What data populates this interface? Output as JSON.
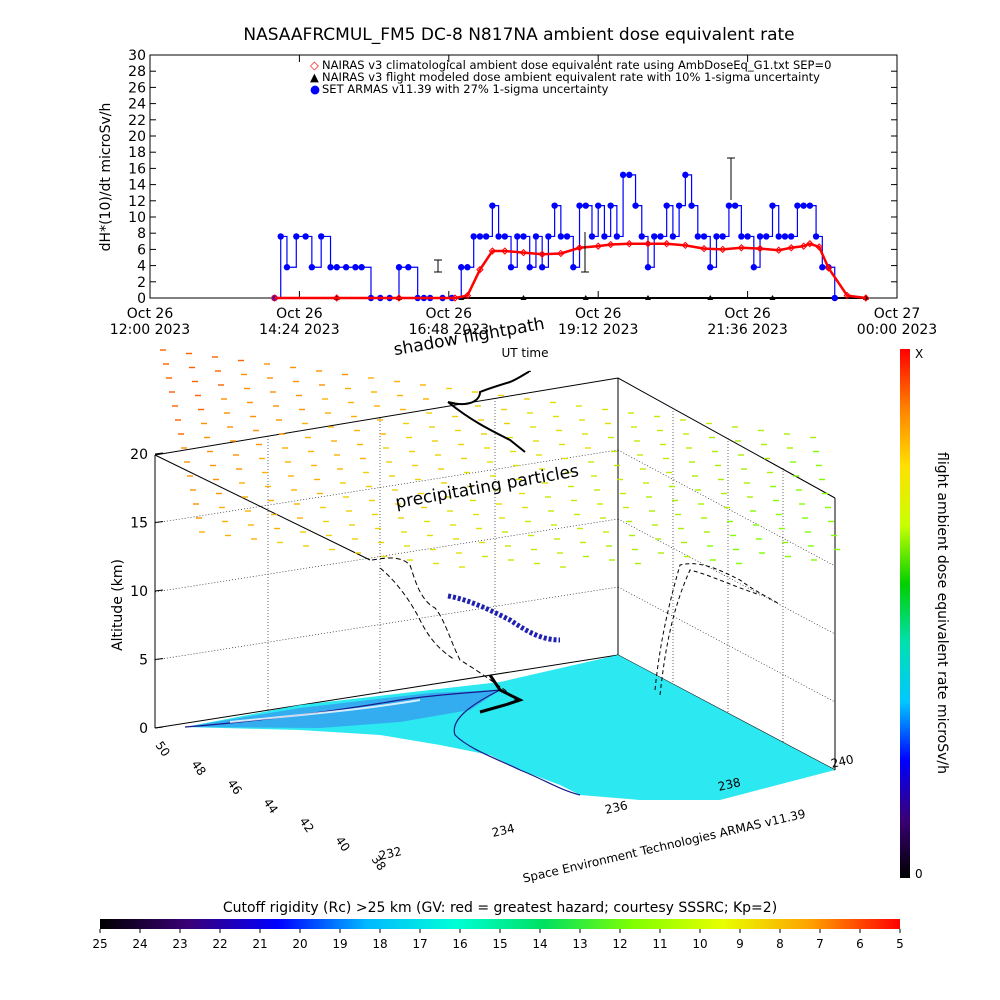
{
  "chart_data": [
    {
      "type": "line",
      "title": "NASAAFRCMUL_FM5 DC-8   N817NA ambient dose equivalent rate",
      "xlabel": "UT time",
      "ylabel": "dH*(10)/dt microSv/h",
      "ylim": [
        0,
        30
      ],
      "yticks": [
        "0",
        "2",
        "4",
        "6",
        "8",
        "10",
        "12",
        "14",
        "16",
        "18",
        "20",
        "22",
        "24",
        "26",
        "28",
        "30"
      ],
      "x_ticks": [
        {
          "day": "Oct 26",
          "time": "12:00 2023"
        },
        {
          "day": "Oct 26",
          "time": "14:24 2023"
        },
        {
          "day": "Oct 26",
          "time": "16:48 2023"
        },
        {
          "day": "Oct 26",
          "time": "19:12 2023"
        },
        {
          "day": "Oct 26",
          "time": "21:36 2023"
        },
        {
          "day": "Oct 27",
          "time": "00:00 2023"
        }
      ],
      "xlim_hours": [
        12,
        24
      ],
      "legend_position": "top",
      "legend": [
        {
          "symbol": "◇",
          "color": "#ff0000",
          "text": "NAIRAS v3 climatological ambient dose equivalent rate using AmbDoseEq_G1.txt SEP=0"
        },
        {
          "symbol": "▲",
          "color": "#000000",
          "text": "NAIRAS v3 flight modeled dose ambient equivalent rate with 10% 1-sigma uncertainty"
        },
        {
          "symbol": "●",
          "color": "#0000ff",
          "text": "SET ARMAS v11.39 with 27% 1-sigma uncertainty"
        }
      ],
      "series": [
        {
          "name": "NAIRAS v3 climatological ambient dose equivalent rate using AmbDoseEq_G1.txt SEP=0",
          "color": "#ff0000",
          "x": [
            14.0,
            15.0,
            16.0,
            16.9,
            17.1,
            17.3,
            17.5,
            17.7,
            18.0,
            18.3,
            18.6,
            18.9,
            19.2,
            19.4,
            19.7,
            20.0,
            20.3,
            20.6,
            20.9,
            21.2,
            21.5,
            21.8,
            22.1,
            22.3,
            22.5,
            22.6,
            22.75,
            22.9,
            23.2,
            23.5
          ],
          "values": [
            0,
            0,
            0,
            0,
            0.3,
            3.5,
            5.8,
            5.8,
            5.6,
            5.4,
            5.5,
            6.2,
            6.4,
            6.6,
            6.7,
            6.7,
            6.7,
            6.5,
            6.1,
            6.0,
            6.2,
            6.1,
            5.9,
            6.2,
            6.4,
            6.7,
            6.3,
            3.7,
            0.3,
            0
          ]
        },
        {
          "name": "NAIRAS v3 flight modeled dose ambient equivalent rate with 10% 1-sigma uncertainty",
          "color": "#000000",
          "x": [
            14.0,
            15.0,
            16.0,
            17.0,
            18.0,
            19.0,
            20.0,
            21.0,
            22.0,
            23.0,
            23.5
          ],
          "values": [
            0,
            0,
            0,
            0,
            0,
            0,
            0,
            0,
            0,
            0,
            0
          ]
        },
        {
          "name": "SET ARMAS v11.39 with 27% 1-sigma uncertainty",
          "color": "#0000ff",
          "x": [
            14.0,
            14.1,
            14.2,
            14.35,
            14.5,
            14.6,
            14.75,
            14.9,
            15.0,
            15.15,
            15.3,
            15.4,
            15.55,
            15.7,
            15.85,
            16.0,
            16.15,
            16.3,
            16.4,
            16.5,
            16.7,
            16.85,
            17.0,
            17.1,
            17.2,
            17.3,
            17.4,
            17.5,
            17.6,
            17.7,
            17.8,
            17.9,
            18.0,
            18.1,
            18.2,
            18.3,
            18.4,
            18.5,
            18.6,
            18.7,
            18.8,
            18.9,
            19.0,
            19.1,
            19.2,
            19.3,
            19.4,
            19.5,
            19.6,
            19.7,
            19.8,
            19.9,
            20.0,
            20.1,
            20.2,
            20.3,
            20.4,
            20.5,
            20.6,
            20.7,
            20.8,
            20.9,
            21.0,
            21.1,
            21.2,
            21.3,
            21.4,
            21.5,
            21.6,
            21.7,
            21.8,
            21.9,
            22.0,
            22.1,
            22.2,
            22.3,
            22.4,
            22.5,
            22.6,
            22.7,
            22.8,
            22.9,
            23.0
          ],
          "values": [
            0,
            7.6,
            3.8,
            7.6,
            7.6,
            3.8,
            7.6,
            3.8,
            3.8,
            3.8,
            3.8,
            3.8,
            0,
            0,
            0,
            3.8,
            3.8,
            0,
            0,
            0,
            0,
            0,
            3.8,
            3.8,
            7.6,
            7.6,
            7.6,
            11.4,
            7.6,
            7.6,
            3.8,
            7.6,
            7.6,
            3.8,
            7.6,
            3.8,
            7.6,
            11.4,
            7.6,
            7.6,
            3.8,
            11.4,
            11.4,
            7.6,
            11.4,
            7.6,
            11.4,
            7.6,
            15.2,
            15.2,
            11.4,
            7.6,
            3.8,
            7.6,
            7.6,
            11.4,
            7.6,
            11.4,
            15.2,
            11.4,
            7.6,
            7.6,
            3.8,
            7.6,
            7.6,
            11.4,
            11.4,
            7.6,
            7.6,
            3.8,
            7.6,
            7.6,
            11.4,
            7.6,
            7.6,
            7.6,
            11.4,
            11.4,
            11.4,
            7.6,
            3.8,
            3.8,
            0
          ]
        }
      ]
    },
    {
      "type": "scatter",
      "subtype": "3d flight path",
      "zlabel": "Altitude (km)",
      "zlim": [
        0,
        20
      ],
      "z_ticks": [
        "0",
        "5",
        "10",
        "15",
        "20"
      ],
      "y_axis_ticks": [
        "38",
        "40",
        "42",
        "44",
        "46",
        "48",
        "50"
      ],
      "x_axis_ticks": [
        "232",
        "234",
        "236",
        "238",
        "240"
      ],
      "annotations": [
        "shadow flightpath",
        "precipitating particles"
      ],
      "vertical_colorbar": {
        "label": "flight ambient dose equivalent rate microSv/h",
        "top_label": "X",
        "bottom_label": "0"
      },
      "credit": "Space Environment Technologies ARMAS v11.39"
    },
    {
      "type": "heatmap",
      "title": "Cutoff rigidity (Rc) >25 km (GV: red = greatest hazard; courtesy SSSRC; Kp=2)",
      "ticks": [
        "25",
        "24",
        "23",
        "22",
        "21",
        "20",
        "19",
        "18",
        "17",
        "16",
        "15",
        "14",
        "13",
        "12",
        "11",
        "10",
        "9",
        "8",
        "7",
        "6",
        "5"
      ],
      "colors": [
        "#000000",
        "#3a0077",
        "#0000ff",
        "#00b8ff",
        "#00ffd8",
        "#00e060",
        "#80ff00",
        "#e8ff00",
        "#ffa000",
        "#ff0000"
      ]
    }
  ]
}
